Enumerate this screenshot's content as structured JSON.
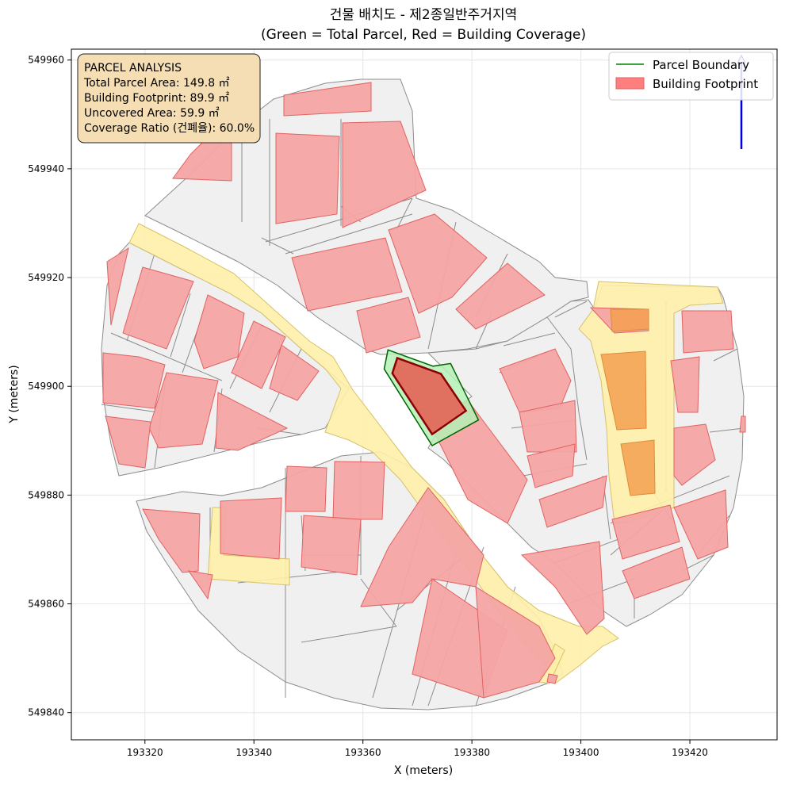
{
  "figure": {
    "title_line1": "건물 배치도 - 제2종일반주거지역",
    "title_line2": "(Green = Total Parcel, Red = Building Coverage)"
  },
  "axes": {
    "xlabel": "X (meters)",
    "ylabel": "Y (meters)",
    "xlim": [
      193306.5,
      193436
    ],
    "ylim": [
      549835,
      549962
    ],
    "xticks": [
      193320,
      193340,
      193360,
      193380,
      193400,
      193420
    ],
    "yticks": [
      549840,
      549860,
      549880,
      549900,
      549920,
      549940,
      549960
    ],
    "grid": true
  },
  "info_box": {
    "lines": [
      "PARCEL ANALYSIS",
      "Total Parcel Area: 149.8 ㎡",
      "Building Footprint: 89.9 ㎡",
      "Uncovered Area: 59.9 ㎡",
      "Coverage Ratio (건폐율): 60.0%"
    ]
  },
  "legend": {
    "placement": "top-right",
    "items": [
      {
        "label": "Parcel Boundary",
        "color": "#008000",
        "kind": "line"
      },
      {
        "label": "Building Footprint",
        "color": "#ff7f7f",
        "kind": "patch"
      }
    ]
  },
  "colors": {
    "parcel_fill": "#f0f0f0",
    "parcel_edge": "#8c8c8c",
    "building_fill": "#f4a4a4",
    "building_edge": "#e26262",
    "road_fill": "#fff0a8",
    "road_edge": "#d6c26a",
    "target_parcel_fill": "#b6f0b6",
    "target_parcel_edge": "#006400",
    "target_building_fill": "#e07060",
    "target_building_edge": "#8b0000",
    "north_arrow": "#0000dd",
    "info_box_bg": "#f5deb3"
  },
  "chart_data": {
    "type": "map",
    "title": "건물 배치도 - 제2종일반주거지역 (Green = Total Parcel, Red = Building Coverage)",
    "xlabel": "X (meters)",
    "ylabel": "Y (meters)",
    "xlim": [
      193306.5,
      193436
    ],
    "ylim": [
      549835,
      549962
    ],
    "target_parcel": [
      [
        193363.9,
        549903.2
      ],
      [
        193364.6,
        549906.7
      ],
      [
        193372.9,
        549903.7
      ],
      [
        193376.1,
        549904.2
      ],
      [
        193381.2,
        549893.8
      ],
      [
        193372.7,
        549889.1
      ]
    ],
    "target_building": [
      [
        193365.4,
        549902.4
      ],
      [
        193366.3,
        549905.2
      ],
      [
        193374.3,
        549902.3
      ],
      [
        193378.9,
        549895.5
      ],
      [
        193372.7,
        549891.2
      ]
    ],
    "parcel_area_m2": 149.8,
    "building_footprint_m2": 89.9,
    "uncovered_area_m2": 59.9,
    "coverage_ratio_pct": 60.0
  }
}
